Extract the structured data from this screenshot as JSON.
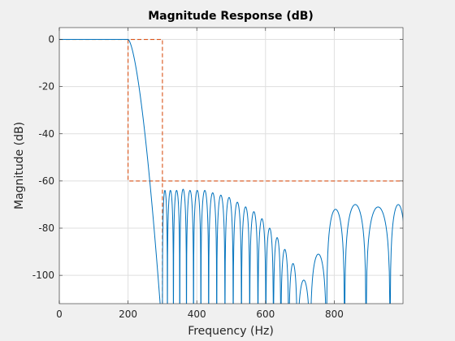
{
  "chart_data": {
    "type": "line",
    "title": "Magnitude Response (dB)",
    "xlabel": "Frequency (Hz)",
    "ylabel": "Magnitude (dB)",
    "xlim": [
      0,
      1000
    ],
    "ylim": [
      -112,
      5
    ],
    "x_ticks": [
      0,
      200,
      400,
      600,
      800
    ],
    "y_ticks": [
      0,
      -20,
      -40,
      -60,
      -80,
      -100
    ],
    "grid": true,
    "colors": {
      "response": "#0072bd",
      "mask": "#d95319"
    },
    "series": [
      {
        "kind": "response",
        "passband_edge_hz": 200,
        "stopband_start_hz": 300,
        "sidelobe_peaks": [
          {
            "x": 306,
            "y": -64
          },
          {
            "x": 323,
            "y": -64
          },
          {
            "x": 341,
            "y": -64
          },
          {
            "x": 360,
            "y": -63.5
          },
          {
            "x": 380,
            "y": -64
          },
          {
            "x": 401,
            "y": -64
          },
          {
            "x": 423,
            "y": -64
          },
          {
            "x": 446,
            "y": -65
          },
          {
            "x": 470,
            "y": -66
          },
          {
            "x": 494,
            "y": -67
          },
          {
            "x": 518,
            "y": -69
          },
          {
            "x": 542,
            "y": -71
          },
          {
            "x": 566,
            "y": -73
          },
          {
            "x": 590,
            "y": -76
          },
          {
            "x": 612,
            "y": -80
          },
          {
            "x": 634,
            "y": -84
          },
          {
            "x": 655,
            "y": -89
          },
          {
            "x": 680,
            "y": -95
          },
          {
            "x": 705,
            "y": -102
          },
          {
            "x": 755,
            "y": -91
          },
          {
            "x": 800,
            "y": -72
          },
          {
            "x": 860,
            "y": -70
          },
          {
            "x": 925,
            "y": -71
          },
          {
            "x": 1000,
            "y": -70
          }
        ]
      },
      {
        "kind": "mask",
        "points": [
          [
            0,
            0
          ],
          [
            200,
            0
          ],
          [
            300,
            0
          ],
          [
            300,
            -112
          ]
        ],
        "points2": [
          [
            200,
            0
          ],
          [
            200,
            -60
          ],
          [
            1000,
            -60
          ]
        ]
      }
    ]
  }
}
